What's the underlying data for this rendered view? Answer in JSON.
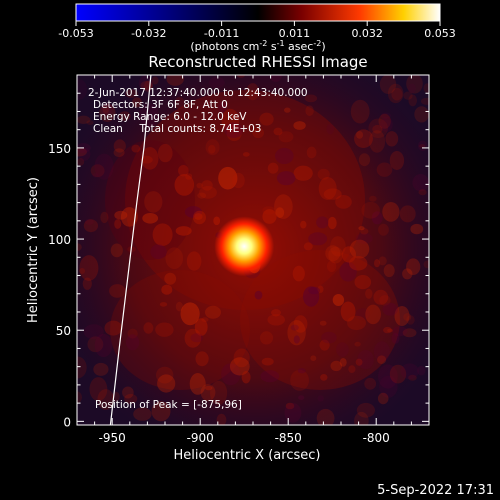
{
  "colorbar": {
    "ticks": [
      "-0.053",
      "-0.032",
      "-0.011",
      "0.011",
      "0.032",
      "0.053"
    ],
    "unit_label_base": "(photons cm",
    "unit_exp1": "-2",
    "unit_mid": " s",
    "unit_exp2": "-1",
    "unit_tail": " asec",
    "unit_exp3": "-2",
    "unit_close": ")",
    "colors": [
      "#0000ff",
      "#000000",
      "#7a0000",
      "#ff3a00",
      "#ffd000",
      "#ffffff"
    ]
  },
  "chart_data": {
    "type": "heatmap",
    "title": "Reconstructed RHESSI Image",
    "xlabel": "Heliocentric X (arcsec)",
    "ylabel": "Heliocentric Y (arcsec)",
    "xlim": [
      -970,
      -770
    ],
    "ylim": [
      -2,
      190
    ],
    "xticks": [
      "-950",
      "-900",
      "-850",
      "-800"
    ],
    "yticks": [
      "0",
      "50",
      "100",
      "150"
    ],
    "xtick_values": [
      -950,
      -900,
      -850,
      -800
    ],
    "ytick_values": [
      0,
      50,
      100,
      150
    ],
    "value_range": [
      -0.053,
      0.053
    ],
    "peak_position": [
      -875,
      96
    ],
    "limb_curve": [
      [
        -951,
        -2
      ],
      [
        -946,
        40
      ],
      [
        -941,
        80
      ],
      [
        -936,
        120
      ],
      [
        -932,
        150
      ],
      [
        -928,
        190
      ]
    ],
    "annotations": {
      "time": "2-Jun-2017 12:37:40.000 to 12:43:40.000",
      "detectors": "Detectors: 3F 6F 8F, Att 0",
      "energy": "Energy Range: 6.0 - 12.0 keV",
      "clean": "Clean     Total counts: 8.74E+03",
      "peak": "Position of Peak = [-875,96]"
    }
  },
  "footer": {
    "timestamp": "5-Sep-2022 17:31"
  }
}
